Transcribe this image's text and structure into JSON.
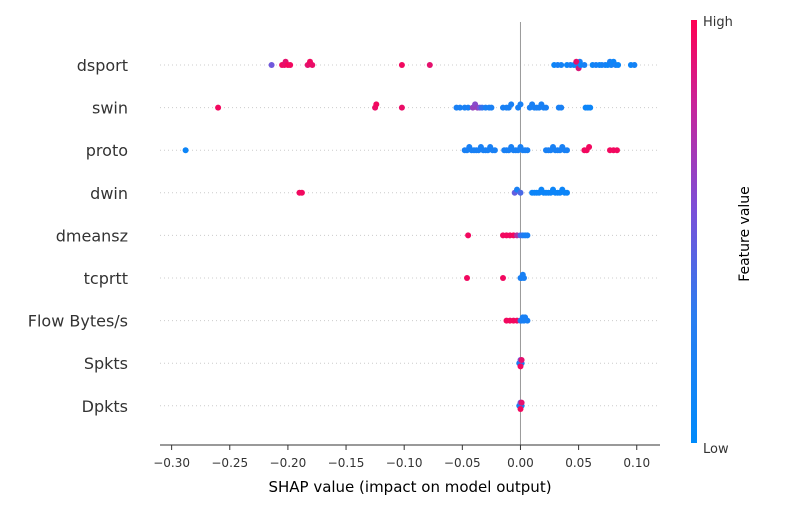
{
  "chart_data": {
    "type": "scatter",
    "xlabel": "SHAP value (impact on model output)",
    "xlim": [
      -0.31,
      0.12
    ],
    "x_ticks": [
      "−0.30",
      "−0.25",
      "−0.20",
      "−0.15",
      "−0.10",
      "−0.05",
      "0.00",
      "0.05",
      "0.10"
    ],
    "x_tick_values": [
      -0.3,
      -0.25,
      -0.2,
      -0.15,
      -0.1,
      -0.05,
      0.0,
      0.05,
      0.1
    ],
    "grid": false,
    "colorbar": {
      "label": "Feature value",
      "high": "High",
      "low": "Low",
      "high_color": "#ff0052",
      "low_color": "#008bfb"
    },
    "features": [
      {
        "name": "dsport",
        "points": [
          [
            -0.214,
            0.45
          ],
          [
            -0.205,
            0.95
          ],
          [
            -0.203,
            0.92
          ],
          [
            -0.202,
            0.9
          ],
          [
            -0.2,
            0.97
          ],
          [
            -0.198,
            0.95
          ],
          [
            -0.183,
            0.9
          ],
          [
            -0.181,
            0.95
          ],
          [
            -0.179,
            0.92
          ],
          [
            -0.102,
            0.95
          ],
          [
            -0.078,
            0.9
          ],
          [
            0.029,
            0.05
          ],
          [
            0.032,
            0.1
          ],
          [
            0.035,
            0.08
          ],
          [
            0.04,
            0.05
          ],
          [
            0.043,
            0.1
          ],
          [
            0.046,
            0.05
          ],
          [
            0.048,
            0.08
          ],
          [
            0.05,
            0.05
          ],
          [
            0.051,
            0.1
          ],
          [
            0.048,
            0.9
          ],
          [
            0.05,
            0.85
          ],
          [
            0.052,
            0.05
          ],
          [
            0.055,
            0.1
          ],
          [
            0.062,
            0.05
          ],
          [
            0.065,
            0.1
          ],
          [
            0.068,
            0.05
          ],
          [
            0.07,
            0.08
          ],
          [
            0.073,
            0.1
          ],
          [
            0.075,
            0.05
          ],
          [
            0.077,
            0.1
          ],
          [
            0.078,
            0.08
          ],
          [
            0.08,
            0.05
          ],
          [
            0.082,
            0.1
          ],
          [
            0.084,
            0.05
          ],
          [
            0.095,
            0.05
          ],
          [
            0.098,
            0.08
          ]
        ]
      },
      {
        "name": "swin",
        "points": [
          [
            -0.26,
            0.95
          ],
          [
            -0.125,
            0.92
          ],
          [
            -0.124,
            0.95
          ],
          [
            -0.102,
            0.92
          ],
          [
            -0.055,
            0.1
          ],
          [
            -0.052,
            0.1
          ],
          [
            -0.048,
            0.1
          ],
          [
            -0.045,
            0.1
          ],
          [
            -0.041,
            0.6
          ],
          [
            -0.039,
            0.55
          ],
          [
            -0.037,
            0.6
          ],
          [
            -0.035,
            0.45
          ],
          [
            -0.033,
            0.2
          ],
          [
            -0.03,
            0.1
          ],
          [
            -0.027,
            0.1
          ],
          [
            -0.025,
            0.1
          ],
          [
            -0.015,
            0.1
          ],
          [
            -0.012,
            0.1
          ],
          [
            -0.01,
            0.1
          ],
          [
            -0.008,
            0.1
          ],
          [
            -0.002,
            0.1
          ],
          [
            0.0,
            0.1
          ],
          [
            0.008,
            0.1
          ],
          [
            0.01,
            0.1
          ],
          [
            0.012,
            0.1
          ],
          [
            0.014,
            0.1
          ],
          [
            0.016,
            0.1
          ],
          [
            0.018,
            0.1
          ],
          [
            0.02,
            0.1
          ],
          [
            0.022,
            0.1
          ],
          [
            0.033,
            0.1
          ],
          [
            0.035,
            0.1
          ],
          [
            0.056,
            0.05
          ],
          [
            0.058,
            0.05
          ],
          [
            0.06,
            0.05
          ]
        ]
      },
      {
        "name": "proto",
        "points": [
          [
            -0.288,
            0.05
          ],
          [
            -0.048,
            0.1
          ],
          [
            -0.046,
            0.1
          ],
          [
            -0.044,
            0.1
          ],
          [
            -0.042,
            0.1
          ],
          [
            -0.04,
            0.1
          ],
          [
            -0.038,
            0.1
          ],
          [
            -0.036,
            0.1
          ],
          [
            -0.034,
            0.1
          ],
          [
            -0.032,
            0.1
          ],
          [
            -0.03,
            0.1
          ],
          [
            -0.028,
            0.1
          ],
          [
            -0.026,
            0.1
          ],
          [
            -0.024,
            0.1
          ],
          [
            -0.022,
            0.1
          ],
          [
            -0.014,
            0.1
          ],
          [
            -0.012,
            0.1
          ],
          [
            -0.01,
            0.1
          ],
          [
            -0.008,
            0.1
          ],
          [
            -0.006,
            0.1
          ],
          [
            -0.004,
            0.1
          ],
          [
            -0.002,
            0.1
          ],
          [
            0.0,
            0.1
          ],
          [
            0.002,
            0.1
          ],
          [
            0.004,
            0.1
          ],
          [
            0.006,
            0.1
          ],
          [
            0.022,
            0.1
          ],
          [
            0.024,
            0.1
          ],
          [
            0.026,
            0.1
          ],
          [
            0.028,
            0.1
          ],
          [
            0.03,
            0.1
          ],
          [
            0.032,
            0.1
          ],
          [
            0.034,
            0.1
          ],
          [
            0.036,
            0.1
          ],
          [
            0.038,
            0.1
          ],
          [
            0.04,
            0.1
          ],
          [
            0.055,
            0.95
          ],
          [
            0.057,
            0.95
          ],
          [
            0.059,
            0.95
          ],
          [
            0.077,
            0.95
          ],
          [
            0.08,
            0.95
          ],
          [
            0.083,
            0.95
          ]
        ]
      },
      {
        "name": "dwin",
        "points": [
          [
            -0.19,
            0.95
          ],
          [
            -0.188,
            0.95
          ],
          [
            -0.005,
            0.4
          ],
          [
            -0.003,
            0.1
          ],
          [
            0.0,
            0.3
          ],
          [
            0.01,
            0.05
          ],
          [
            0.012,
            0.05
          ],
          [
            0.014,
            0.05
          ],
          [
            0.016,
            0.05
          ],
          [
            0.018,
            0.05
          ],
          [
            0.02,
            0.05
          ],
          [
            0.022,
            0.05
          ],
          [
            0.024,
            0.05
          ],
          [
            0.026,
            0.05
          ],
          [
            0.028,
            0.05
          ],
          [
            0.03,
            0.05
          ],
          [
            0.032,
            0.05
          ],
          [
            0.034,
            0.05
          ],
          [
            0.036,
            0.05
          ],
          [
            0.038,
            0.05
          ],
          [
            0.04,
            0.05
          ]
        ]
      },
      {
        "name": "dmeansz",
        "points": [
          [
            -0.045,
            0.95
          ],
          [
            -0.015,
            0.95
          ],
          [
            -0.012,
            0.95
          ],
          [
            -0.009,
            0.95
          ],
          [
            -0.006,
            0.95
          ],
          [
            -0.003,
            0.7
          ],
          [
            0.0,
            0.3
          ],
          [
            0.002,
            0.15
          ],
          [
            0.004,
            0.1
          ],
          [
            0.006,
            0.1
          ]
        ]
      },
      {
        "name": "tcprtt",
        "points": [
          [
            -0.046,
            0.95
          ],
          [
            -0.015,
            0.95
          ],
          [
            0.0,
            0.1
          ],
          [
            0.001,
            0.1
          ],
          [
            0.002,
            0.1
          ],
          [
            0.003,
            0.1
          ]
        ]
      },
      {
        "name": "Flow Bytes/s",
        "points": [
          [
            -0.012,
            0.95
          ],
          [
            -0.009,
            0.95
          ],
          [
            -0.006,
            0.95
          ],
          [
            -0.003,
            0.95
          ],
          [
            0.0,
            0.2
          ],
          [
            0.001,
            0.1
          ],
          [
            0.002,
            0.1
          ],
          [
            0.003,
            0.1
          ],
          [
            0.004,
            0.1
          ],
          [
            0.006,
            0.1
          ]
        ]
      },
      {
        "name": "Spkts",
        "points": [
          [
            -0.001,
            0.1
          ],
          [
            0.0,
            0.5
          ],
          [
            0.001,
            0.1
          ],
          [
            0.001,
            0.9
          ],
          [
            0.0,
            0.95
          ]
        ]
      },
      {
        "name": "Dpkts",
        "points": [
          [
            -0.001,
            0.1
          ],
          [
            0.0,
            0.5
          ],
          [
            0.001,
            0.1
          ],
          [
            0.001,
            0.9
          ],
          [
            0.0,
            0.95
          ]
        ]
      }
    ]
  }
}
